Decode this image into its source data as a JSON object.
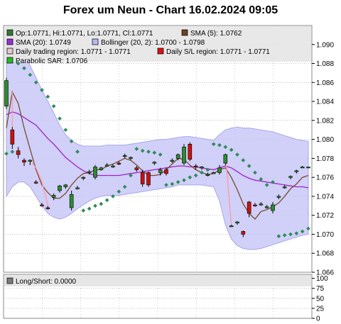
{
  "title": "Forex um Neun - Chart 16.02.2024 09:05",
  "colors": {
    "bollinger_fill": "#c8c8f8",
    "bollinger_edge": "#a8a8e8",
    "sma5": "#7a4a2e",
    "sma20": "#a020c8",
    "sar": "#2e8b57",
    "up": "#2e8b2e",
    "down": "#cc1010",
    "daily_range": "#ff9aa0",
    "legend_bg": "#e6e6e6",
    "grid": "#9a9a9a"
  },
  "legend": [
    {
      "label": "Op:1.0771, Hi:1.0771, Lo:1.0771, Cl:1.0771",
      "swatch": "#2e7d2e"
    },
    {
      "label": "SMA (5): 1.0762",
      "swatch": "#6b4226"
    },
    {
      "label": "SMA (20): 1.0749",
      "swatch": "#9b30d0"
    },
    {
      "label": "Bollinger (20, 2): 1.0700 - 1.0798",
      "swatch": "#b8b8f0"
    },
    {
      "label": "Daily trading region: 1.0771 - 1.0771",
      "swatch": "#e6c8c8"
    },
    {
      "label": "Daily S/L region: 1.0771 - 1.0771",
      "swatch": "#dd1111"
    },
    {
      "label": "Parabolic SAR: 1.0706",
      "swatch": "#22bb22"
    }
  ],
  "sub_legend": [
    {
      "label": "Long/Short: 0.0000",
      "swatch": "#7a7a7a"
    }
  ],
  "chart_data": [
    {
      "type": "candlestick",
      "ylim": [
        1.066,
        1.092
      ],
      "y_ticks": [
        1.066,
        1.068,
        1.07,
        1.072,
        1.074,
        1.076,
        1.078,
        1.08,
        1.082,
        1.084,
        1.086,
        1.088,
        1.09
      ],
      "y_tick_labels": [
        "1.066",
        "1.068",
        "1.070",
        "1.072",
        "1.074",
        "1.076",
        "1.078",
        "1.080",
        "1.082",
        "1.084",
        "1.086",
        "1.088",
        "1.090"
      ],
      "grid": true,
      "candles": [
        {
          "o": 1.0835,
          "h": 1.0865,
          "l": 1.0832,
          "c": 1.0862
        },
        {
          "o": 1.081,
          "h": 1.0813,
          "l": 1.079,
          "c": 1.0795
        },
        {
          "o": 1.0788,
          "h": 1.0792,
          "l": 1.078,
          "c": 1.0784
        },
        {
          "o": 1.0778,
          "h": 1.078,
          "l": 1.0772,
          "c": 1.0776
        },
        {
          "o": 1.0777,
          "h": 1.0779,
          "l": 1.0773,
          "c": 1.0778
        },
        {
          "o": 1.0755,
          "h": 1.0757,
          "l": 1.0753,
          "c": 1.0754
        },
        {
          "o": 1.0731,
          "h": 1.0733,
          "l": 1.0729,
          "c": 1.073
        },
        {
          "o": 1.0728,
          "h": 1.073,
          "l": 1.0726,
          "c": 1.0727
        },
        {
          "o": 1.0739,
          "h": 1.0743,
          "l": 1.0736,
          "c": 1.0741
        },
        {
          "o": 1.0746,
          "h": 1.0752,
          "l": 1.0744,
          "c": 1.0751
        },
        {
          "o": 1.075,
          "h": 1.0753,
          "l": 1.0748,
          "c": 1.0752
        },
        {
          "o": 1.0728,
          "h": 1.0746,
          "l": 1.0725,
          "c": 1.0742
        },
        {
          "o": 1.0749,
          "h": 1.0751,
          "l": 1.0747,
          "c": 1.0749
        },
        {
          "o": 1.0759,
          "h": 1.0761,
          "l": 1.0757,
          "c": 1.076
        },
        {
          "o": 1.0765,
          "h": 1.0768,
          "l": 1.0763,
          "c": 1.0766
        },
        {
          "o": 1.076,
          "h": 1.0773,
          "l": 1.0758,
          "c": 1.0771
        },
        {
          "o": 1.0768,
          "h": 1.0771,
          "l": 1.0767,
          "c": 1.077
        },
        {
          "o": 1.0773,
          "h": 1.0775,
          "l": 1.0771,
          "c": 1.0773
        },
        {
          "o": 1.0772,
          "h": 1.0774,
          "l": 1.077,
          "c": 1.0772
        },
        {
          "o": 1.0775,
          "h": 1.0777,
          "l": 1.0773,
          "c": 1.0774
        },
        {
          "o": 1.0782,
          "h": 1.0785,
          "l": 1.078,
          "c": 1.0783
        },
        {
          "o": 1.078,
          "h": 1.0782,
          "l": 1.0778,
          "c": 1.0781
        },
        {
          "o": 1.077,
          "h": 1.0772,
          "l": 1.0766,
          "c": 1.0768
        },
        {
          "o": 1.0765,
          "h": 1.0768,
          "l": 1.075,
          "c": 1.0753
        },
        {
          "o": 1.0765,
          "h": 1.0766,
          "l": 1.075,
          "c": 1.0752
        },
        {
          "o": 1.0775,
          "h": 1.0777,
          "l": 1.0773,
          "c": 1.0776
        },
        {
          "o": 1.0765,
          "h": 1.077,
          "l": 1.0762,
          "c": 1.0768
        },
        {
          "o": 1.0768,
          "h": 1.077,
          "l": 1.0762,
          "c": 1.0764
        },
        {
          "o": 1.0777,
          "h": 1.078,
          "l": 1.0775,
          "c": 1.0778
        },
        {
          "o": 1.078,
          "h": 1.0785,
          "l": 1.0778,
          "c": 1.0784
        },
        {
          "o": 1.0775,
          "h": 1.0795,
          "l": 1.0773,
          "c": 1.0792
        },
        {
          "o": 1.0795,
          "h": 1.0797,
          "l": 1.0777,
          "c": 1.0779
        },
        {
          "o": 1.0772,
          "h": 1.0774,
          "l": 1.0768,
          "c": 1.0771
        },
        {
          "o": 1.077,
          "h": 1.0772,
          "l": 1.0768,
          "c": 1.0771
        },
        {
          "o": 1.0763,
          "h": 1.0765,
          "l": 1.0761,
          "c": 1.0763
        },
        {
          "o": 1.0765,
          "h": 1.0766,
          "l": 1.0764,
          "c": 1.0765
        },
        {
          "o": 1.0765,
          "h": 1.0773,
          "l": 1.0763,
          "c": 1.077
        },
        {
          "o": 1.0775,
          "h": 1.0785,
          "l": 1.0773,
          "c": 1.0784
        },
        {
          "o": 1.0709,
          "h": 1.071,
          "l": 1.0708,
          "c": 1.0709
        },
        {
          "o": 1.0712,
          "h": 1.0714,
          "l": 1.071,
          "c": 1.0713
        },
        {
          "o": 1.0703,
          "h": 1.0704,
          "l": 1.0697,
          "c": 1.07
        },
        {
          "o": 1.0734,
          "h": 1.0735,
          "l": 1.0718,
          "c": 1.0722
        },
        {
          "o": 1.0731,
          "h": 1.0733,
          "l": 1.0729,
          "c": 1.073
        },
        {
          "o": 1.0732,
          "h": 1.0734,
          "l": 1.073,
          "c": 1.0732
        },
        {
          "o": 1.0729,
          "h": 1.0731,
          "l": 1.0727,
          "c": 1.0729
        },
        {
          "o": 1.0725,
          "h": 1.0734,
          "l": 1.0722,
          "c": 1.0731
        },
        {
          "o": 1.0739,
          "h": 1.0742,
          "l": 1.0737,
          "c": 1.074
        },
        {
          "o": 1.075,
          "h": 1.0752,
          "l": 1.0748,
          "c": 1.075
        },
        {
          "o": 1.076,
          "h": 1.0762,
          "l": 1.0758,
          "c": 1.0761
        },
        {
          "o": 1.0766,
          "h": 1.0768,
          "l": 1.0764,
          "c": 1.0767
        },
        {
          "o": 1.0771,
          "h": 1.0772,
          "l": 1.077,
          "c": 1.0771
        },
        {
          "o": 1.0771,
          "h": 1.0771,
          "l": 1.0771,
          "c": 1.0771
        }
      ],
      "daily_region_segments": [
        [
          [
            1,
            1.085
          ],
          [
            1,
            1.081
          ]
        ],
        [
          [
            4,
            1.0778
          ],
          [
            5,
            1.077
          ],
          [
            6,
            1.0755
          ],
          [
            7,
            1.0731
          ]
        ],
        [
          [
            37,
            1.0784
          ],
          [
            38,
            1.0709
          ]
        ],
        [
          [
            41,
            1.0722
          ],
          [
            41,
            1.0734
          ]
        ]
      ],
      "sma5": [
        1.0812,
        1.085,
        1.0838,
        1.0812,
        1.079,
        1.0768,
        1.0752,
        1.0744,
        1.0738,
        1.0738,
        1.0743,
        1.0752,
        1.0759,
        1.0764,
        1.0765,
        1.0768,
        1.0768,
        1.0772,
        1.0774,
        1.0777,
        1.078,
        1.0778,
        1.0773,
        1.0767,
        1.0762,
        1.0762,
        1.0763,
        1.0768,
        1.0774,
        1.078,
        1.0779,
        1.0773,
        1.0768,
        1.0765,
        1.0763,
        1.0764,
        1.0768,
        1.077,
        1.076,
        1.0747,
        1.0732,
        1.0722,
        1.0716,
        1.0724,
        1.0726,
        1.0729,
        1.0733,
        1.074,
        1.0748,
        1.0753,
        1.076,
        1.0762
      ],
      "sma20": [
        1.0826,
        1.0829,
        1.0827,
        1.0823,
        1.0819,
        1.0815,
        1.0808,
        1.0801,
        1.0795,
        1.0788,
        1.0781,
        1.0776,
        1.0771,
        1.0767,
        1.0764,
        1.0762,
        1.0762,
        1.0762,
        1.0762,
        1.0762,
        1.0763,
        1.0764,
        1.0765,
        1.0766,
        1.0767,
        1.0768,
        1.0769,
        1.077,
        1.0771,
        1.0772,
        1.0772,
        1.0771,
        1.0771,
        1.077,
        1.0769,
        1.0768,
        1.077,
        1.0772,
        1.077,
        1.0766,
        1.0762,
        1.0759,
        1.0757,
        1.0756,
        1.0755,
        1.0754,
        1.0753,
        1.0752,
        1.0751,
        1.075,
        1.075,
        1.0749
      ],
      "bollinger_upper": [
        1.091,
        1.0908,
        1.09,
        1.089,
        1.0878,
        1.0865,
        1.0852,
        1.084,
        1.0828,
        1.0815,
        1.0805,
        1.0799,
        1.0795,
        1.0793,
        1.0793,
        1.0793,
        1.0793,
        1.0794,
        1.0794,
        1.0794,
        1.0794,
        1.0795,
        1.0796,
        1.0797,
        1.0798,
        1.0799,
        1.08,
        1.08,
        1.0801,
        1.0802,
        1.0803,
        1.0803,
        1.0802,
        1.0801,
        1.08,
        1.0799,
        1.0805,
        1.081,
        1.0812,
        1.0813,
        1.0812,
        1.0812,
        1.0811,
        1.081,
        1.0809,
        1.0808,
        1.0806,
        1.0804,
        1.0802,
        1.08,
        1.0799,
        1.0798
      ],
      "bollinger_lower": [
        1.074,
        1.075,
        1.0755,
        1.0755,
        1.075,
        1.074,
        1.073,
        1.0722,
        1.0718,
        1.0716,
        1.0718,
        1.0722,
        1.0727,
        1.0731,
        1.0735,
        1.0738,
        1.074,
        1.0741,
        1.0741,
        1.0741,
        1.0742,
        1.0743,
        1.0744,
        1.0745,
        1.0746,
        1.0747,
        1.0748,
        1.0749,
        1.075,
        1.0752,
        1.0752,
        1.0752,
        1.0752,
        1.0752,
        1.0751,
        1.075,
        1.0735,
        1.071,
        1.0695,
        1.0688,
        1.0685,
        1.0684,
        1.0684,
        1.0685,
        1.0687,
        1.0689,
        1.0691,
        1.0693,
        1.0695,
        1.0697,
        1.0699,
        1.07
      ],
      "sar": [
        1.0785,
        1.0787,
        1.088,
        1.0875,
        1.0868,
        1.086,
        1.0852,
        1.0845,
        1.0835,
        1.0822,
        1.081,
        1.0798,
        1.0787,
        1.0725,
        1.0727,
        1.073,
        1.0732,
        1.0736,
        1.074,
        1.0745,
        1.075,
        1.0762,
        1.079,
        1.0788,
        1.0787,
        1.0786,
        1.0784,
        1.0752,
        1.0753,
        1.0755,
        1.0757,
        1.076,
        1.0762,
        1.0765,
        1.0768,
        1.0795,
        1.0794,
        1.0792,
        1.0789,
        1.0784,
        1.0778,
        1.0772,
        1.0765,
        1.0758,
        1.0752,
        1.0755,
        1.0698,
        1.0699,
        1.07,
        1.0701,
        1.0703,
        1.0706
      ]
    },
    {
      "type": "bar",
      "name": "Long/Short",
      "ylim": [
        0,
        110
      ],
      "y_ticks": [
        0,
        25,
        50,
        75,
        100
      ],
      "y_tick_labels": [
        "0",
        "25",
        "50",
        "75",
        "100"
      ],
      "values": []
    }
  ]
}
